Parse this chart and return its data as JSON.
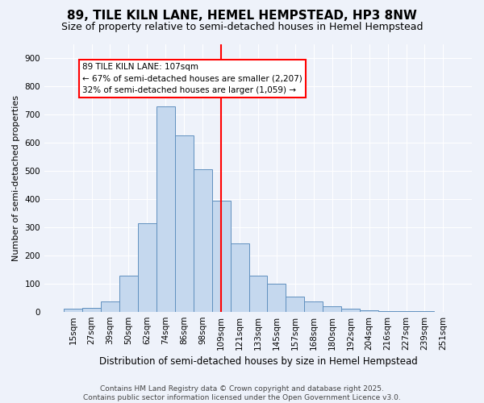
{
  "title": "89, TILE KILN LANE, HEMEL HEMPSTEAD, HP3 8NW",
  "subtitle": "Size of property relative to semi-detached houses in Hemel Hempstead",
  "xlabel": "Distribution of semi-detached houses by size in Hemel Hempstead",
  "ylabel": "Number of semi-detached properties",
  "categories": [
    "15sqm",
    "27sqm",
    "39sqm",
    "50sqm",
    "62sqm",
    "74sqm",
    "86sqm",
    "98sqm",
    "109sqm",
    "121sqm",
    "133sqm",
    "145sqm",
    "157sqm",
    "168sqm",
    "180sqm",
    "192sqm",
    "204sqm",
    "216sqm",
    "227sqm",
    "239sqm",
    "251sqm"
  ],
  "values": [
    10,
    12,
    37,
    127,
    315,
    730,
    625,
    505,
    393,
    243,
    127,
    99,
    53,
    35,
    20,
    10,
    5,
    3,
    2,
    1,
    0
  ],
  "bar_color": "#c5d8ee",
  "bar_edge_color": "#6090bf",
  "bar_width": 1.0,
  "vline_idx": 8,
  "vline_color": "red",
  "annotation_title": "89 TILE KILN LANE: 107sqm",
  "annotation_line1": "← 67% of semi-detached houses are smaller (2,207)",
  "annotation_line2": "32% of semi-detached houses are larger (1,059) →",
  "annotation_box_color": "white",
  "annotation_box_edge": "red",
  "ylim": [
    0,
    950
  ],
  "yticks": [
    0,
    100,
    200,
    300,
    400,
    500,
    600,
    700,
    800,
    900
  ],
  "footer_line1": "Contains HM Land Registry data © Crown copyright and database right 2025.",
  "footer_line2": "Contains public sector information licensed under the Open Government Licence v3.0.",
  "bg_color": "#eef2fa",
  "plot_bg_color": "#eef2fa",
  "grid_color": "#ffffff",
  "title_fontsize": 11,
  "subtitle_fontsize": 9,
  "ylabel_fontsize": 8,
  "xlabel_fontsize": 8.5,
  "tick_fontsize": 7.5,
  "footer_fontsize": 6.5
}
